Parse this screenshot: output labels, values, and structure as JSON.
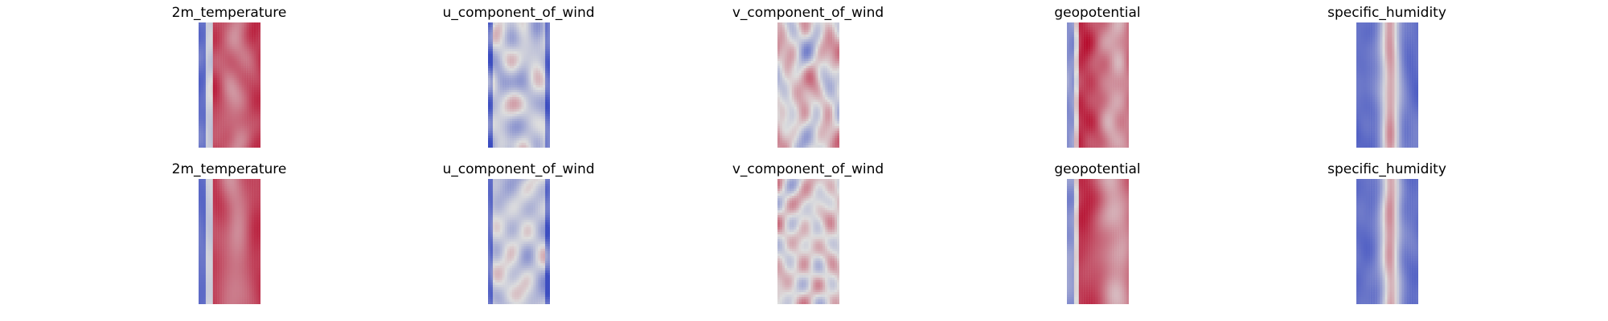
{
  "figure": {
    "colormap": {
      "name": "coolwarm",
      "low": "#3b4cc0",
      "mid": "#dddddd",
      "high": "#b40426"
    },
    "rows": [
      {
        "panels": [
          {
            "title": "2m_temperature",
            "field": "temperature"
          },
          {
            "title": "u_component_of_wind",
            "field": "u_wind"
          },
          {
            "title": "v_component_of_wind",
            "field": "v_wind"
          },
          {
            "title": "geopotential",
            "field": "geopotential"
          },
          {
            "title": "specific_humidity",
            "field": "humidity"
          }
        ]
      },
      {
        "panels": [
          {
            "title": "2m_temperature",
            "field": "temperature"
          },
          {
            "title": "u_component_of_wind",
            "field": "u_wind"
          },
          {
            "title": "v_component_of_wind",
            "field": "v_wind"
          },
          {
            "title": "geopotential",
            "field": "geopotential"
          },
          {
            "title": "specific_humidity",
            "field": "humidity"
          }
        ]
      }
    ]
  }
}
